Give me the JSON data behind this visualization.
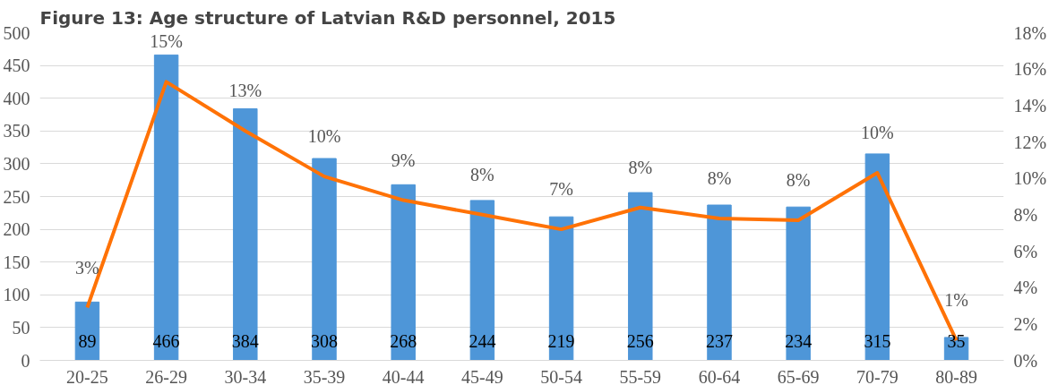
{
  "chart_data": {
    "type": "bar",
    "title": "Figure 13: Age structure of Latvian R&D personnel, 2015",
    "categories": [
      "20-25",
      "26-29",
      "30-34",
      "35-39",
      "40-44",
      "45-49",
      "50-54",
      "55-59",
      "60-64",
      "65-69",
      "70-79",
      "80-89"
    ],
    "series": [
      {
        "color": "#4e96d8",
        "values": [
          89,
          466,
          384,
          308,
          268,
          244,
          219,
          256,
          237,
          234,
          315,
          35
        ],
        "data_labels": true
      },
      {
        "type": "line",
        "axis": "y2",
        "color": "#ff7206",
        "values": [
          2.9,
          15.3,
          12.6,
          10.1,
          8.8,
          8.0,
          7.2,
          8.4,
          7.8,
          7.7,
          10.3,
          1.1
        ],
        "value_labels": [
          "3%",
          "15%",
          "13%",
          "10%",
          "9%",
          "8%",
          "7%",
          "8%",
          "8%",
          "8%",
          "10%",
          "1%"
        ]
      }
    ],
    "ylim": [
      0,
      500
    ],
    "yticks": [
      0,
      50,
      100,
      150,
      200,
      250,
      300,
      350,
      400,
      450,
      500
    ],
    "y2lim": [
      0,
      18
    ],
    "y2ticks": [
      {
        "value": 0,
        "label": "0%"
      },
      {
        "value": 2,
        "label": "2%"
      },
      {
        "value": 4,
        "label": "4%"
      },
      {
        "value": 6,
        "label": "6%"
      },
      {
        "value": 8,
        "label": "8%"
      },
      {
        "value": 10,
        "label": "10%"
      },
      {
        "value": 12,
        "label": "12%"
      },
      {
        "value": 14,
        "label": "14%"
      },
      {
        "value": 16,
        "label": "16%"
      },
      {
        "value": 18,
        "label": "18%"
      }
    ],
    "grid": "y"
  }
}
